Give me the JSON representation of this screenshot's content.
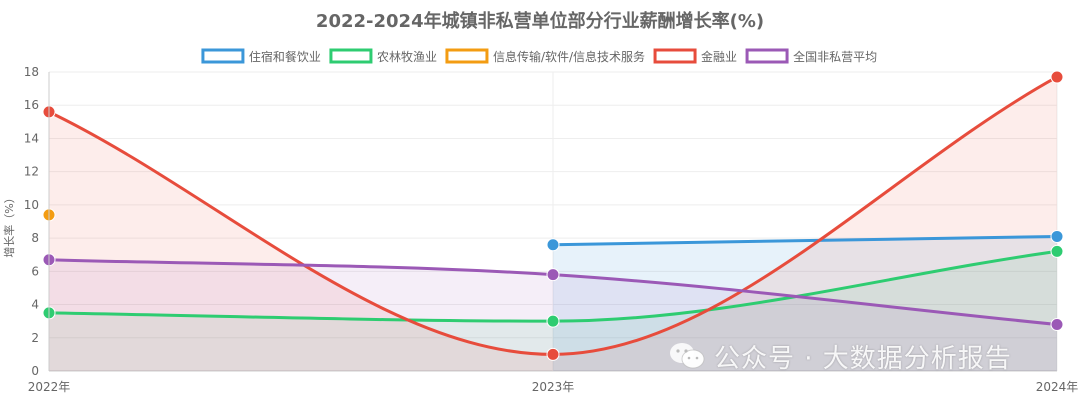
{
  "chart_data": {
    "type": "line",
    "title": "2022-2024年城镇非私营单位部分行业薪酬增长率(%)",
    "ylabel": "增长率（%）",
    "xlabel": "",
    "categories": [
      "2022年",
      "2023年",
      "2024年"
    ],
    "ylim": [
      0,
      18
    ],
    "yticks": [
      0,
      2,
      4,
      6,
      8,
      10,
      12,
      14,
      16,
      18
    ],
    "grid": true,
    "legend_position": "top-center",
    "series": [
      {
        "name": "住宿和餐饮业",
        "color": "#3b97d9",
        "fill": "rgba(59,151,217,0.12)",
        "values": [
          null,
          7.6,
          8.1
        ]
      },
      {
        "name": "农林牧渔业",
        "color": "#2ecc71",
        "fill": "rgba(46,204,113,0.10)",
        "values": [
          3.5,
          3.0,
          7.2
        ]
      },
      {
        "name": "信息传输/软件/信息技术服务",
        "color": "#f39c12",
        "fill": "rgba(243,156,18,0.10)",
        "values": [
          9.4,
          null,
          null
        ]
      },
      {
        "name": "金融业",
        "color": "#e74c3c",
        "fill": "rgba(231,76,60,0.10)",
        "values": [
          15.6,
          1.0,
          17.7
        ]
      },
      {
        "name": "全国非私营平均",
        "color": "#9b59b6",
        "fill": "rgba(155,89,182,0.10)",
        "values": [
          6.7,
          5.8,
          2.8
        ]
      }
    ]
  },
  "watermark": {
    "text": "公众号 · 大数据分析报告",
    "icon": "wechat-icon"
  }
}
